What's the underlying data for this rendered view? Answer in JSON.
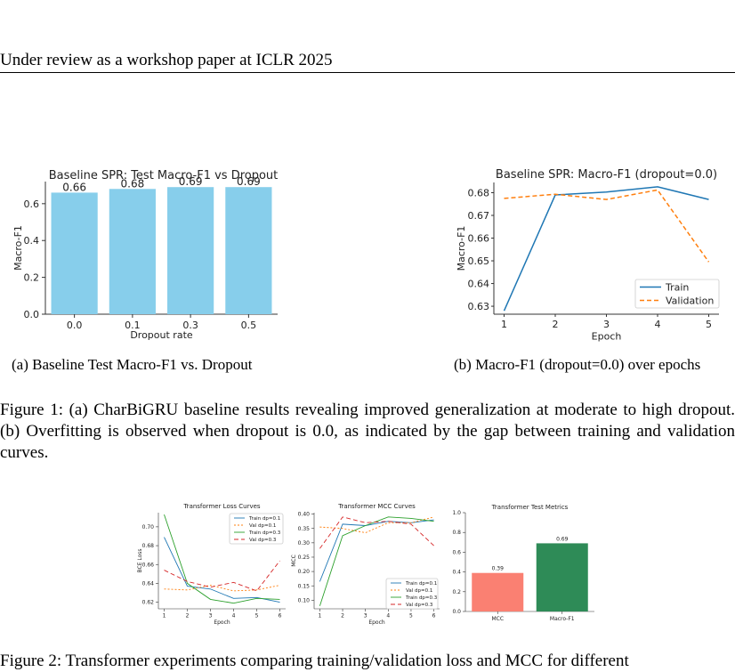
{
  "header": {
    "text": "Under review as a workshop paper at ICLR 2025"
  },
  "figure1": {
    "subcaption_a": "(a)  Baseline Test Macro-F1 vs. Dropout",
    "subcaption_b": "(b)  Macro-F1 (dropout=0.0) over epochs",
    "caption": "Figure 1: (a) CharBiGRU baseline results revealing improved generalization at moderate to high dropout. (b) Overfitting is observed when dropout is 0.0, as indicated by the gap between training and validation curves."
  },
  "figure2": {
    "caption_partial": "Figure 2: Transformer experiments comparing training/validation loss and MCC for different"
  },
  "colors": {
    "bar_blue": "#87CEEB",
    "train_blue": "#1f77b4",
    "val_orange": "#ff7f0e",
    "train_green": "#2ca02c",
    "val_red": "#d62728",
    "mcc_salmon": "#FA8072",
    "f1_green": "#2E8B57"
  },
  "chart_data": [
    {
      "type": "bar",
      "title": "Baseline SPR: Test Macro-F1 vs Dropout",
      "xlabel": "Dropout rate",
      "ylabel": "Macro-F1",
      "categories": [
        "0.0",
        "0.1",
        "0.3",
        "0.5"
      ],
      "values": [
        0.66,
        0.68,
        0.69,
        0.69
      ],
      "data_labels": [
        "0.66",
        "0.68",
        "0.69",
        "0.69"
      ],
      "ylim": [
        0,
        0.72
      ],
      "yticks": [
        "0.0",
        "0.2",
        "0.4",
        "0.6"
      ],
      "ytick_values": [
        0,
        0.2,
        0.4,
        0.6
      ]
    },
    {
      "type": "line",
      "title": "Baseline SPR: Macro-F1 (dropout=0.0)",
      "xlabel": "Epoch",
      "ylabel": "Macro-F1",
      "x": [
        1,
        2,
        3,
        4,
        5
      ],
      "xticks": [
        "1",
        "2",
        "3",
        "4",
        "5"
      ],
      "yticks": [
        "0.63",
        "0.64",
        "0.65",
        "0.66",
        "0.67",
        "0.68"
      ],
      "ytick_values": [
        0.63,
        0.64,
        0.65,
        0.66,
        0.67,
        0.68
      ],
      "ylim": [
        0.6265,
        0.6845
      ],
      "legend_position": "bottom-right",
      "series": [
        {
          "name": "Train",
          "values": [
            0.628,
            0.679,
            0.6803,
            0.6826,
            0.677
          ]
        },
        {
          "name": "Validation",
          "values": [
            0.6775,
            0.6793,
            0.677,
            0.6812,
            0.6495
          ]
        }
      ]
    },
    {
      "type": "line",
      "title": "Transformer Loss Curves",
      "xlabel": "Epoch",
      "ylabel": "BCE Loss",
      "x": [
        1,
        2,
        3,
        4,
        5,
        6
      ],
      "xticks": [
        "1",
        "2",
        "3",
        "4",
        "5",
        "6"
      ],
      "yticks": [
        "0.62",
        "0.64",
        "0.66",
        "0.68",
        "0.70"
      ],
      "ytick_values": [
        0.62,
        0.64,
        0.66,
        0.68,
        0.7
      ],
      "ylim": [
        0.613,
        0.715
      ],
      "legend_position": "top-right",
      "series": [
        {
          "name": "Train dp=0.1",
          "values": [
            0.689,
            0.637,
            0.634,
            0.624,
            0.625,
            0.62
          ]
        },
        {
          "name": "Val dp=0.1",
          "values": [
            0.634,
            0.633,
            0.638,
            0.632,
            0.633,
            0.638
          ]
        },
        {
          "name": "Train dp=0.3",
          "values": [
            0.713,
            0.64,
            0.623,
            0.619,
            0.624,
            0.623
          ]
        },
        {
          "name": "Val dp=0.3",
          "values": [
            0.654,
            0.642,
            0.636,
            0.641,
            0.632,
            0.664
          ]
        }
      ]
    },
    {
      "type": "line",
      "title": "Transformer MCC Curves",
      "xlabel": "Epoch",
      "ylabel": "MCC",
      "x": [
        1,
        2,
        3,
        4,
        5,
        6
      ],
      "xticks": [
        "1",
        "2",
        "3",
        "4",
        "5",
        "6"
      ],
      "yticks": [
        "0.10",
        "0.15",
        "0.20",
        "0.25",
        "0.30",
        "0.35",
        "0.40"
      ],
      "ytick_values": [
        0.1,
        0.15,
        0.2,
        0.25,
        0.3,
        0.35,
        0.4
      ],
      "ylim": [
        0.07,
        0.405
      ],
      "legend_position": "bottom-right",
      "series": [
        {
          "name": "Train dp=0.1",
          "values": [
            0.165,
            0.365,
            0.36,
            0.375,
            0.37,
            0.38
          ]
        },
        {
          "name": "Val dp=0.1",
          "values": [
            0.355,
            0.35,
            0.335,
            0.37,
            0.37,
            0.39
          ]
        },
        {
          "name": "Train dp=0.3",
          "values": [
            0.08,
            0.325,
            0.36,
            0.39,
            0.385,
            0.375
          ]
        },
        {
          "name": "Val dp=0.3",
          "values": [
            0.28,
            0.39,
            0.37,
            0.375,
            0.365,
            0.29
          ]
        }
      ]
    },
    {
      "type": "bar",
      "title": "Transformer Test Metrics",
      "categories": [
        "MCC",
        "Macro-F1"
      ],
      "values": [
        0.39,
        0.69
      ],
      "data_labels": [
        "0.39",
        "0.69"
      ],
      "ylim": [
        0,
        1.0
      ],
      "yticks": [
        "0.0",
        "0.2",
        "0.4",
        "0.6",
        "0.8",
        "1.0"
      ],
      "ytick_values": [
        0,
        0.2,
        0.4,
        0.6,
        0.8,
        1.0
      ]
    }
  ]
}
